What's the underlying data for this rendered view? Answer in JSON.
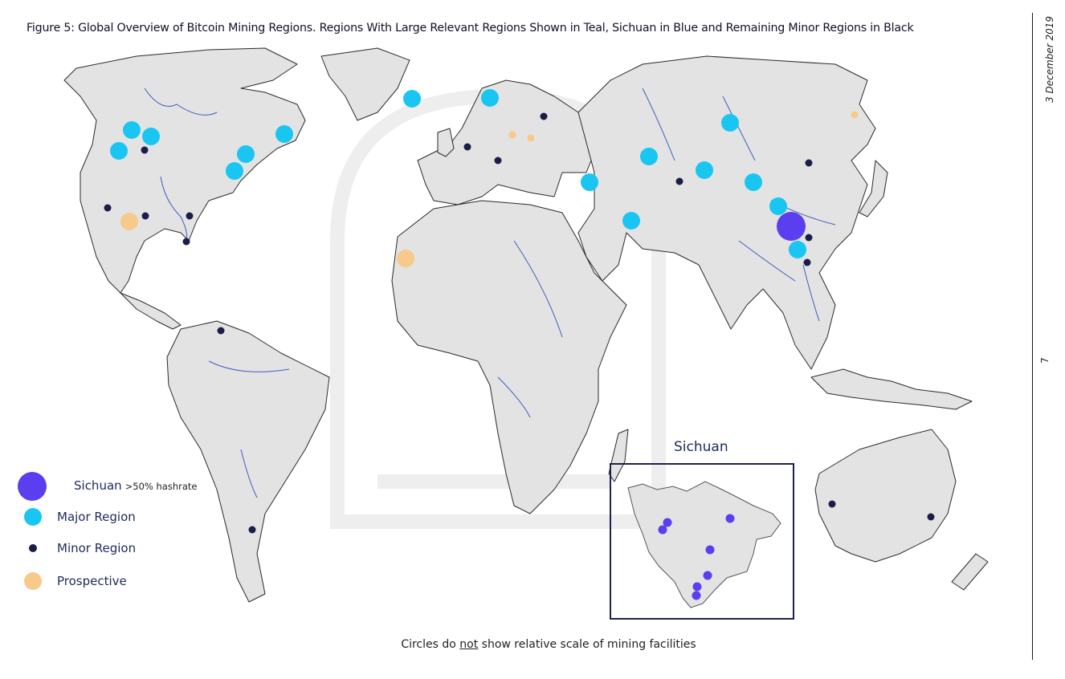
{
  "title": "Figure 5: Global Overview of Bitcoin Mining Regions. Regions With Large Relevant Regions Shown in Teal, Sichuan in Blue and Remaining Minor Regions in Black",
  "side_date": "3 December 2019",
  "page_number": "7",
  "colors": {
    "land": "#e3e3e3",
    "border": "#2a2a2a",
    "river": "#3b5fc0",
    "major": "#19c6f2",
    "minor": "#1b1d4a",
    "sichuan": "#5a3ef0",
    "prospective": "#f7c98a",
    "watermark": "#eeeeee"
  },
  "legend": [
    {
      "key": "sichuan",
      "label": "Sichuan",
      "sub": ">50% hashrate"
    },
    {
      "key": "major",
      "label": "Major Region",
      "sub": ""
    },
    {
      "key": "minor",
      "label": "Minor Region",
      "sub": ""
    },
    {
      "key": "prospective",
      "label": "Prospective",
      "sub": ""
    }
  ],
  "inset": {
    "title": "Sichuan"
  },
  "caption": {
    "before": "Circles do ",
    "underlined": "not",
    "after": " show relative scale of mining facilities"
  }
}
